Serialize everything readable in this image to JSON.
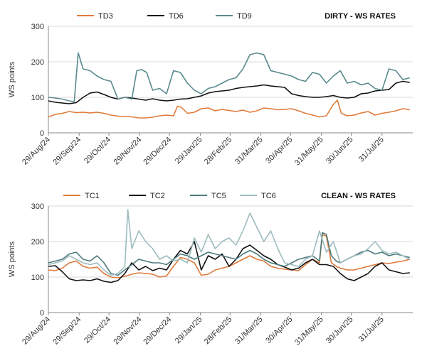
{
  "chart_data": [
    {
      "type": "line",
      "title": "DIRTY - WS RATES",
      "ylabel": "WS points",
      "xlabel": "",
      "ylim": [
        0,
        300
      ],
      "yticks": [
        0,
        100,
        200,
        300
      ],
      "xlim": [
        "2024-08-29",
        "2025-08-31"
      ],
      "xtick_labels": [
        "29/Aug/24",
        "29/Sep/24",
        "29/Oct/24",
        "29/Nov/24",
        "29/Dec/24",
        "29/Jan/25",
        "28/Feb/25",
        "31/Mar/25",
        "30/Apr/25",
        "31/May/25",
        "30/Jun/25",
        "31/Jul/25"
      ],
      "xtick_dates": [
        "2024-08-29",
        "2024-09-29",
        "2024-10-29",
        "2024-11-29",
        "2024-12-29",
        "2025-01-29",
        "2025-02-28",
        "2025-03-31",
        "2025-04-30",
        "2025-05-31",
        "2025-06-30",
        "2025-07-31"
      ],
      "grid": "horizontal",
      "legend": "top-left",
      "series": [
        {
          "name": "TD3",
          "color": "#e07a3a",
          "x": [
            "2024-08-29",
            "2024-09-05",
            "2024-09-12",
            "2024-09-19",
            "2024-09-26",
            "2024-10-03",
            "2024-10-10",
            "2024-10-17",
            "2024-10-24",
            "2024-10-31",
            "2024-11-07",
            "2024-11-14",
            "2024-11-21",
            "2024-11-28",
            "2024-12-05",
            "2024-12-12",
            "2024-12-19",
            "2024-12-26",
            "2025-01-02",
            "2025-01-06",
            "2025-01-10",
            "2025-01-16",
            "2025-01-23",
            "2025-01-30",
            "2025-02-06",
            "2025-02-13",
            "2025-02-20",
            "2025-02-27",
            "2025-03-06",
            "2025-03-13",
            "2025-03-20",
            "2025-03-27",
            "2025-04-03",
            "2025-04-10",
            "2025-04-17",
            "2025-04-24",
            "2025-05-01",
            "2025-05-08",
            "2025-05-15",
            "2025-05-22",
            "2025-05-29",
            "2025-06-05",
            "2025-06-12",
            "2025-06-16",
            "2025-06-20",
            "2025-06-26",
            "2025-07-03",
            "2025-07-10",
            "2025-07-17",
            "2025-07-24",
            "2025-07-31",
            "2025-08-07",
            "2025-08-14",
            "2025-08-21",
            "2025-08-28"
          ],
          "y": [
            45,
            52,
            55,
            60,
            57,
            58,
            56,
            58,
            55,
            50,
            47,
            46,
            45,
            42,
            42,
            44,
            48,
            50,
            48,
            75,
            72,
            55,
            58,
            68,
            70,
            62,
            66,
            63,
            60,
            64,
            58,
            62,
            70,
            68,
            65,
            66,
            68,
            62,
            55,
            50,
            45,
            48,
            80,
            92,
            55,
            48,
            50,
            56,
            60,
            50,
            55,
            58,
            62,
            68,
            65
          ]
        },
        {
          "name": "TD6",
          "color": "#111111",
          "x": [
            "2024-08-29",
            "2024-09-05",
            "2024-09-12",
            "2024-09-19",
            "2024-09-26",
            "2024-10-03",
            "2024-10-10",
            "2024-10-17",
            "2024-10-24",
            "2024-10-31",
            "2024-11-07",
            "2024-11-14",
            "2024-11-21",
            "2024-11-28",
            "2024-12-05",
            "2024-12-12",
            "2024-12-19",
            "2024-12-26",
            "2025-01-02",
            "2025-01-09",
            "2025-01-16",
            "2025-01-23",
            "2025-01-30",
            "2025-02-06",
            "2025-02-13",
            "2025-02-20",
            "2025-02-27",
            "2025-03-06",
            "2025-03-13",
            "2025-03-20",
            "2025-03-27",
            "2025-04-03",
            "2025-04-10",
            "2025-04-17",
            "2025-04-24",
            "2025-05-01",
            "2025-05-08",
            "2025-05-15",
            "2025-05-22",
            "2025-05-29",
            "2025-06-05",
            "2025-06-12",
            "2025-06-19",
            "2025-06-26",
            "2025-07-03",
            "2025-07-10",
            "2025-07-17",
            "2025-07-24",
            "2025-07-31",
            "2025-08-07",
            "2025-08-14",
            "2025-08-21",
            "2025-08-28"
          ],
          "y": [
            90,
            86,
            84,
            82,
            85,
            100,
            112,
            115,
            108,
            100,
            95,
            100,
            98,
            95,
            92,
            96,
            92,
            90,
            92,
            95,
            96,
            100,
            104,
            112,
            116,
            118,
            120,
            125,
            128,
            130,
            132,
            135,
            132,
            130,
            128,
            110,
            105,
            102,
            100,
            100,
            102,
            105,
            100,
            98,
            100,
            110,
            112,
            118,
            120,
            122,
            140,
            145,
            142
          ]
        },
        {
          "name": "TD9",
          "color": "#5a8a8e",
          "x": [
            "2024-08-29",
            "2024-09-05",
            "2024-09-12",
            "2024-09-19",
            "2024-09-24",
            "2024-09-28",
            "2024-10-03",
            "2024-10-10",
            "2024-10-17",
            "2024-10-24",
            "2024-10-31",
            "2024-11-07",
            "2024-11-14",
            "2024-11-21",
            "2024-11-26",
            "2024-12-01",
            "2024-12-06",
            "2024-12-12",
            "2024-12-19",
            "2024-12-26",
            "2025-01-02",
            "2025-01-09",
            "2025-01-16",
            "2025-01-23",
            "2025-01-30",
            "2025-02-06",
            "2025-02-13",
            "2025-02-20",
            "2025-02-27",
            "2025-03-06",
            "2025-03-13",
            "2025-03-20",
            "2025-03-27",
            "2025-04-03",
            "2025-04-10",
            "2025-04-17",
            "2025-04-24",
            "2025-05-01",
            "2025-05-08",
            "2025-05-15",
            "2025-05-22",
            "2025-05-29",
            "2025-06-05",
            "2025-06-12",
            "2025-06-19",
            "2025-06-26",
            "2025-07-03",
            "2025-07-10",
            "2025-07-17",
            "2025-07-24",
            "2025-07-31",
            "2025-08-07",
            "2025-08-14",
            "2025-08-21",
            "2025-08-28"
          ],
          "y": [
            100,
            98,
            95,
            90,
            88,
            225,
            180,
            175,
            160,
            150,
            145,
            95,
            100,
            95,
            175,
            178,
            170,
            120,
            125,
            110,
            175,
            170,
            140,
            120,
            110,
            125,
            130,
            140,
            150,
            155,
            180,
            220,
            225,
            220,
            175,
            170,
            165,
            160,
            150,
            145,
            170,
            165,
            140,
            160,
            175,
            140,
            145,
            135,
            140,
            125,
            120,
            180,
            175,
            150,
            155
          ]
        }
      ]
    },
    {
      "type": "line",
      "title": "CLEAN - WS RATES",
      "ylabel": "WS points",
      "xlabel": "",
      "ylim": [
        0,
        300
      ],
      "yticks": [
        0,
        100,
        200,
        300
      ],
      "xlim": [
        "2024-08-29",
        "2025-08-31"
      ],
      "xtick_labels": [
        "29/Aug/24",
        "29/Sep/24",
        "29/Oct/24",
        "29/Nov/24",
        "29/Dec/24",
        "29/Jan/25",
        "28/Feb/25",
        "31/Mar/25",
        "30/Apr/25",
        "31/May/25",
        "30/Jun/25",
        "31/Jul/25"
      ],
      "xtick_dates": [
        "2024-08-29",
        "2024-09-29",
        "2024-10-29",
        "2024-11-29",
        "2024-12-29",
        "2025-01-29",
        "2025-02-28",
        "2025-03-31",
        "2025-04-30",
        "2025-05-31",
        "2025-06-30",
        "2025-07-31"
      ],
      "grid": "horizontal",
      "legend": "top-left",
      "series": [
        {
          "name": "TC1",
          "color": "#e07a3a",
          "x": [
            "2024-08-29",
            "2024-09-05",
            "2024-09-12",
            "2024-09-19",
            "2024-09-26",
            "2024-10-03",
            "2024-10-10",
            "2024-10-17",
            "2024-10-24",
            "2024-10-31",
            "2024-11-07",
            "2024-11-14",
            "2024-11-21",
            "2024-11-28",
            "2024-12-05",
            "2024-12-12",
            "2024-12-19",
            "2024-12-26",
            "2025-01-02",
            "2025-01-09",
            "2025-01-16",
            "2025-01-23",
            "2025-01-30",
            "2025-02-06",
            "2025-02-13",
            "2025-02-20",
            "2025-02-27",
            "2025-03-06",
            "2025-03-13",
            "2025-03-20",
            "2025-03-27",
            "2025-04-03",
            "2025-04-10",
            "2025-04-17",
            "2025-04-24",
            "2025-05-01",
            "2025-05-08",
            "2025-05-15",
            "2025-05-22",
            "2025-05-29",
            "2025-06-01",
            "2025-06-05",
            "2025-06-10",
            "2025-06-15",
            "2025-06-19",
            "2025-06-26",
            "2025-07-03",
            "2025-07-10",
            "2025-07-17",
            "2025-07-24",
            "2025-07-31",
            "2025-08-07",
            "2025-08-14",
            "2025-08-21",
            "2025-08-28"
          ],
          "y": [
            120,
            118,
            125,
            140,
            145,
            130,
            125,
            128,
            110,
            100,
            98,
            102,
            108,
            112,
            110,
            108,
            100,
            103,
            130,
            155,
            150,
            140,
            105,
            108,
            120,
            125,
            130,
            140,
            150,
            160,
            150,
            145,
            130,
            125,
            122,
            120,
            118,
            135,
            150,
            140,
            220,
            215,
            140,
            130,
            125,
            120,
            120,
            125,
            130,
            135,
            140,
            138,
            142,
            145,
            150
          ]
        },
        {
          "name": "TC2",
          "color": "#111111",
          "x": [
            "2024-08-29",
            "2024-09-05",
            "2024-09-12",
            "2024-09-19",
            "2024-09-26",
            "2024-10-03",
            "2024-10-10",
            "2024-10-17",
            "2024-10-24",
            "2024-10-31",
            "2024-11-07",
            "2024-11-14",
            "2024-11-21",
            "2024-11-28",
            "2024-12-05",
            "2024-12-12",
            "2024-12-19",
            "2024-12-26",
            "2025-01-02",
            "2025-01-09",
            "2025-01-16",
            "2025-01-23",
            "2025-01-30",
            "2025-02-06",
            "2025-02-13",
            "2025-02-20",
            "2025-02-27",
            "2025-03-06",
            "2025-03-13",
            "2025-03-20",
            "2025-03-27",
            "2025-04-03",
            "2025-04-10",
            "2025-04-17",
            "2025-04-24",
            "2025-05-01",
            "2025-05-08",
            "2025-05-15",
            "2025-05-22",
            "2025-05-29",
            "2025-06-05",
            "2025-06-12",
            "2025-06-19",
            "2025-06-26",
            "2025-07-03",
            "2025-07-10",
            "2025-07-17",
            "2025-07-24",
            "2025-07-31",
            "2025-08-07",
            "2025-08-14",
            "2025-08-21",
            "2025-08-28"
          ],
          "y": [
            130,
            132,
            115,
            95,
            90,
            92,
            90,
            95,
            88,
            85,
            90,
            110,
            140,
            120,
            130,
            118,
            125,
            120,
            150,
            175,
            165,
            200,
            120,
            160,
            150,
            165,
            130,
            150,
            180,
            190,
            175,
            160,
            150,
            135,
            128,
            120,
            125,
            140,
            150,
            135,
            135,
            130,
            110,
            95,
            90,
            100,
            110,
            130,
            140,
            120,
            115,
            110,
            112
          ]
        },
        {
          "name": "TC5",
          "color": "#4d7b7e",
          "x": [
            "2024-08-29",
            "2024-09-05",
            "2024-09-12",
            "2024-09-19",
            "2024-09-26",
            "2024-10-03",
            "2024-10-10",
            "2024-10-17",
            "2024-10-24",
            "2024-10-31",
            "2024-11-07",
            "2024-11-14",
            "2024-11-21",
            "2024-11-28",
            "2024-12-05",
            "2024-12-12",
            "2024-12-19",
            "2024-12-26",
            "2025-01-02",
            "2025-01-09",
            "2025-01-16",
            "2025-01-23",
            "2025-01-30",
            "2025-02-06",
            "2025-02-13",
            "2025-02-20",
            "2025-02-27",
            "2025-03-06",
            "2025-03-13",
            "2025-03-20",
            "2025-03-27",
            "2025-04-03",
            "2025-04-10",
            "2025-04-17",
            "2025-04-24",
            "2025-05-01",
            "2025-05-08",
            "2025-05-15",
            "2025-05-22",
            "2025-05-29",
            "2025-06-01",
            "2025-06-05",
            "2025-06-10",
            "2025-06-15",
            "2025-06-19",
            "2025-06-26",
            "2025-07-03",
            "2025-07-10",
            "2025-07-17",
            "2025-07-24",
            "2025-07-31",
            "2025-08-07",
            "2025-08-14",
            "2025-08-21",
            "2025-08-28"
          ],
          "y": [
            140,
            145,
            150,
            165,
            170,
            150,
            145,
            160,
            140,
            110,
            105,
            120,
            135,
            150,
            145,
            140,
            140,
            135,
            150,
            165,
            160,
            150,
            160,
            170,
            165,
            160,
            155,
            150,
            165,
            175,
            165,
            150,
            140,
            135,
            130,
            140,
            150,
            155,
            160,
            145,
            225,
            220,
            160,
            145,
            140,
            150,
            160,
            170,
            175,
            165,
            170,
            160,
            165,
            160,
            155
          ]
        },
        {
          "name": "TC6",
          "color": "#9dbcbe",
          "x": [
            "2024-08-29",
            "2024-09-05",
            "2024-09-12",
            "2024-09-19",
            "2024-09-26",
            "2024-10-03",
            "2024-10-10",
            "2024-10-17",
            "2024-10-24",
            "2024-10-31",
            "2024-11-07",
            "2024-11-14",
            "2024-11-17",
            "2024-11-21",
            "2024-11-28",
            "2024-12-05",
            "2024-12-12",
            "2024-12-19",
            "2024-12-26",
            "2025-01-02",
            "2025-01-09",
            "2025-01-16",
            "2025-01-23",
            "2025-01-30",
            "2025-02-06",
            "2025-02-13",
            "2025-02-20",
            "2025-02-27",
            "2025-03-06",
            "2025-03-13",
            "2025-03-20",
            "2025-03-27",
            "2025-04-03",
            "2025-04-10",
            "2025-04-17",
            "2025-04-24",
            "2025-05-01",
            "2025-05-08",
            "2025-05-15",
            "2025-05-22",
            "2025-05-29",
            "2025-06-05",
            "2025-06-12",
            "2025-06-19",
            "2025-06-26",
            "2025-07-03",
            "2025-07-10",
            "2025-07-17",
            "2025-07-24",
            "2025-07-31",
            "2025-08-07",
            "2025-08-14",
            "2025-08-21",
            "2025-08-28"
          ],
          "y": [
            135,
            140,
            145,
            160,
            150,
            140,
            135,
            140,
            120,
            105,
            110,
            130,
            290,
            180,
            230,
            200,
            180,
            150,
            160,
            145,
            150,
            140,
            210,
            170,
            220,
            180,
            200,
            210,
            190,
            230,
            280,
            240,
            200,
            230,
            180,
            140,
            135,
            130,
            150,
            160,
            230,
            170,
            200,
            140,
            150,
            160,
            165,
            180,
            200,
            175,
            165,
            170,
            160,
            150
          ]
        }
      ]
    }
  ]
}
